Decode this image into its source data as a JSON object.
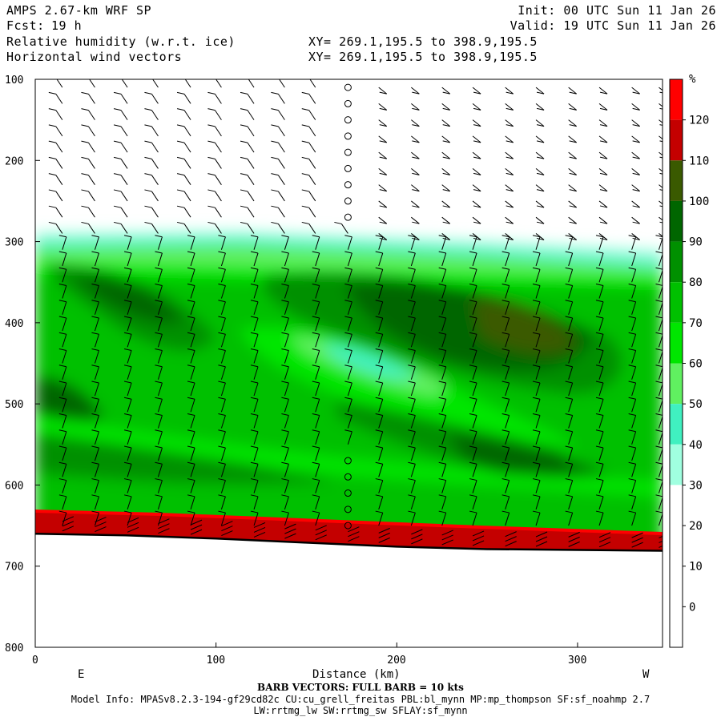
{
  "header": {
    "title": "AMPS 2.67-km WRF SP",
    "fcst_label": "Fcst:",
    "fcst_value": "19 h",
    "field1": "Relative humidity (w.r.t. ice)",
    "field2": "Horizontal wind vectors",
    "init": "Init: 00 UTC Sun 11 Jan 26",
    "valid": "Valid: 19 UTC Sun 11 Jan 26",
    "xy1": "XY= 269.1,195.5 to 398.9,195.5",
    "xy2": "XY= 269.1,195.5 to 398.9,195.5"
  },
  "footer": {
    "barb_note": "BARB VECTORS:  FULL BARB = 10 kts",
    "model_info": "Model Info: MPASv8.2.3-194-gf29cd82c CU:cu_grell_freitas PBL:bl_mynn MP:mp_thompson SF:sf_noahmp 2.7",
    "model_info2": "LW:rrtmg_lw SW:rrtmg_sw SFLAY:sf_mynn"
  },
  "chart_data": {
    "type": "heatmap",
    "title": "Relative humidity (w.r.t. ice)",
    "xlabel": "Distance (km)",
    "ylabel": "",
    "x_ticks": [
      "0",
      "100",
      "200",
      "300"
    ],
    "y_ticks": [
      "100",
      "200",
      "300",
      "400",
      "500",
      "600",
      "700",
      "800"
    ],
    "x_range": [
      0,
      347
    ],
    "y_range": [
      800,
      100
    ],
    "y_reversed": true,
    "left_end_label": "E",
    "right_end_label": "W",
    "colorbar": {
      "unit": "%",
      "levels": [
        "120",
        "110",
        "100",
        "90",
        "80",
        "70",
        "60",
        "50",
        "40",
        "30",
        "20",
        "10",
        "0"
      ],
      "colors": [
        "#ff0000",
        "#c40000",
        "#3a5a00",
        "#006600",
        "#009000",
        "#00c000",
        "#00e600",
        "#60f060",
        "#40f0c0",
        "#a0ffe0",
        "#ffffff",
        "#ffffff",
        "#ffffff",
        "#ffffff"
      ]
    },
    "terrain_surface_hPa": [
      [
        0,
        660
      ],
      [
        50,
        662
      ],
      [
        100,
        666
      ],
      [
        150,
        671
      ],
      [
        200,
        676
      ],
      [
        250,
        679
      ],
      [
        300,
        680
      ],
      [
        347,
        681
      ]
    ],
    "barb_columns_km": [
      15,
      33,
      51,
      68,
      86,
      103,
      121,
      138,
      155,
      173,
      190,
      208,
      225,
      242,
      260,
      277,
      295,
      312,
      330,
      345
    ],
    "barb_levels_hPa": [
      110,
      130,
      150,
      170,
      190,
      210,
      230,
      250,
      270,
      290,
      310,
      330,
      350,
      370,
      390,
      410,
      430,
      450,
      470,
      490,
      510,
      530,
      550,
      570,
      590,
      610,
      630,
      650
    ],
    "calm_column_km": 173,
    "grid": false
  }
}
